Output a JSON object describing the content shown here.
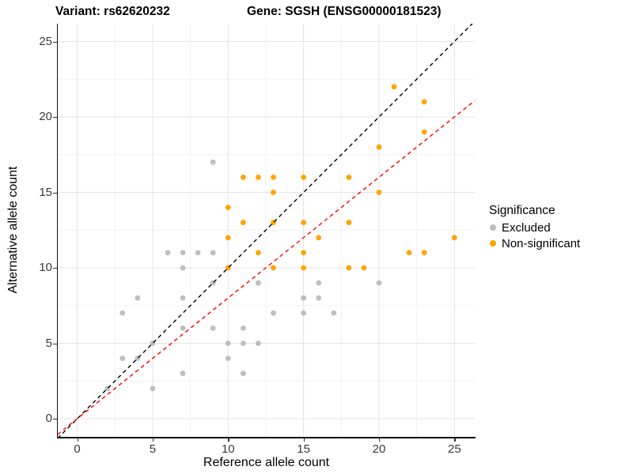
{
  "title": {
    "variant": "Variant: rs62620232",
    "gene": "Gene: SGSH (ENSG00000181523)"
  },
  "axes": {
    "x": {
      "label": "Reference allele count",
      "ticks": [
        0,
        5,
        10,
        15,
        20,
        25
      ],
      "minor_ticks": [
        2.5,
        7.5,
        12.5,
        17.5,
        22.5
      ]
    },
    "y": {
      "label": "Alternative allele count",
      "ticks": [
        0,
        5,
        10,
        15,
        20,
        25
      ],
      "minor_ticks": [
        2.5,
        7.5,
        12.5,
        17.5,
        22.5
      ]
    }
  },
  "legend": {
    "title": "Significance",
    "items": [
      {
        "label": "Excluded",
        "color": "#BEBEBE"
      },
      {
        "label": "Non-significant",
        "color": "#FFA500"
      }
    ]
  },
  "colors": {
    "excluded": "#BEBEBE",
    "non_significant": "#FFA500",
    "identity_line": "#000000",
    "ratio_line": "#FF0000",
    "grid_major": "#E4E4E4",
    "grid_minor": "#F2F2F2"
  },
  "chart_data": {
    "type": "scatter",
    "title": "Variant: rs62620232   Gene: SGSH (ENSG00000181523)",
    "xlabel": "Reference allele count",
    "ylabel": "Alternative allele count",
    "xlim": [
      -1.3,
      26.35
    ],
    "ylim": [
      -1.2,
      26.2
    ],
    "grid": true,
    "legend_position": "right",
    "series": [
      {
        "name": "Excluded",
        "color": "#BEBEBE",
        "points": [
          [
            2,
            2
          ],
          [
            3,
            4
          ],
          [
            3,
            7
          ],
          [
            4,
            4
          ],
          [
            4,
            8
          ],
          [
            5,
            2
          ],
          [
            5,
            5
          ],
          [
            6,
            11
          ],
          [
            7,
            3
          ],
          [
            7,
            6
          ],
          [
            7,
            8
          ],
          [
            7,
            10
          ],
          [
            7,
            11
          ],
          [
            8,
            11
          ],
          [
            9,
            6
          ],
          [
            9,
            9
          ],
          [
            9,
            11
          ],
          [
            9,
            17
          ],
          [
            10,
            4
          ],
          [
            10,
            5
          ],
          [
            11,
            3
          ],
          [
            11,
            5
          ],
          [
            11,
            6
          ],
          [
            12,
            5
          ],
          [
            12,
            9
          ],
          [
            13,
            7
          ],
          [
            15,
            7
          ],
          [
            15,
            8
          ],
          [
            16,
            8
          ],
          [
            16,
            9
          ],
          [
            17,
            7
          ],
          [
            20,
            9
          ]
        ]
      },
      {
        "name": "Non-significant",
        "color": "#FFA500",
        "points": [
          [
            10,
            10
          ],
          [
            10,
            12
          ],
          [
            10,
            14
          ],
          [
            11,
            13
          ],
          [
            11,
            16
          ],
          [
            12,
            11
          ],
          [
            12,
            16
          ],
          [
            13,
            10
          ],
          [
            13,
            13
          ],
          [
            13,
            15
          ],
          [
            13,
            16
          ],
          [
            15,
            10
          ],
          [
            15,
            11
          ],
          [
            15,
            13
          ],
          [
            15,
            16
          ],
          [
            16,
            12
          ],
          [
            18,
            10
          ],
          [
            18,
            13
          ],
          [
            18,
            16
          ],
          [
            19,
            10
          ],
          [
            20,
            15
          ],
          [
            20,
            18
          ],
          [
            21,
            22
          ],
          [
            22,
            11
          ],
          [
            23,
            11
          ],
          [
            23,
            19
          ],
          [
            23,
            21
          ],
          [
            25,
            12
          ]
        ]
      }
    ],
    "lines": [
      {
        "name": "identity",
        "slope": 1,
        "intercept": 0,
        "color": "#000000",
        "style": "dashed"
      },
      {
        "name": "ratio-fit",
        "slope": 0.8,
        "intercept": 0,
        "color": "#FF0000",
        "style": "dashed"
      }
    ]
  }
}
